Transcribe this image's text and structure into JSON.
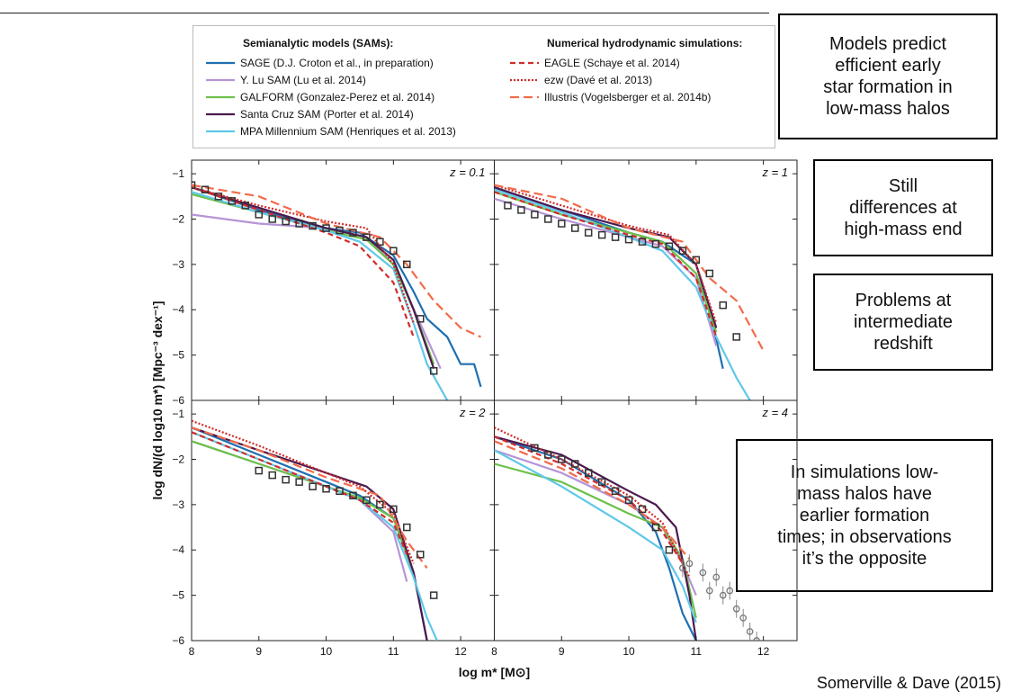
{
  "legend": {
    "sam_heading": "Semianalytic models (SAMs):",
    "sim_heading": "Numerical hydrodynamic simulations:",
    "sam_items": [
      {
        "label": "SAGE (D.J. Croton et al., in preparation)",
        "color": "#1f6fb0",
        "dash": ""
      },
      {
        "label": "Y. Lu SAM (Lu et al. 2014)",
        "color": "#b694d6",
        "dash": ""
      },
      {
        "label": "GALFORM (Gonzalez-Perez et al. 2014)",
        "color": "#6cc04a",
        "dash": ""
      },
      {
        "label": "Santa Cruz SAM (Porter et al. 2014)",
        "color": "#4b1a4e",
        "dash": ""
      },
      {
        "label": "MPA Millennium SAM (Henriques et al. 2013)",
        "color": "#5fc8e8",
        "dash": ""
      }
    ],
    "sim_items": [
      {
        "label": "EAGLE (Schaye et al. 2014)",
        "color": "#d22b2b",
        "dash": "6,4"
      },
      {
        "label": "ezw (Davé et al. 2013)",
        "color": "#d22b2b",
        "dash": "2,2"
      },
      {
        "label": "Illustris (Vogelsberger et al. 2014b)",
        "color": "#f26b4a",
        "dash": "10,5"
      }
    ]
  },
  "callouts": {
    "c1": [
      "Models predict",
      "efficient early",
      "star formation in",
      "low-mass halos"
    ],
    "c2": [
      "Still",
      "differences at",
      "high-mass end"
    ],
    "c3": [
      "Problems at",
      "intermediate",
      "redshift"
    ],
    "c4": [
      "In simulations low-",
      "mass halos have",
      "earlier formation",
      "times; in observations",
      "it’s the opposite"
    ]
  },
  "citation": "Somerville & Dave (2015)",
  "chart_data": {
    "type": "line",
    "xlabel": "log m* [M⊙]",
    "ylabel": "log dN/(d log10 m*) [Mpc⁻³ dex⁻¹]",
    "xlim": [
      8,
      12.5
    ],
    "ylim": [
      -6,
      -0.7
    ],
    "xticks": [
      "8",
      "9",
      "10",
      "11",
      "12"
    ],
    "yticks": [
      "−1",
      "−2",
      "−3",
      "−4",
      "−5",
      "−6"
    ],
    "panels": [
      {
        "label": "z = 0.1",
        "series": [
          {
            "name": "SAGE",
            "color": "#1f6fb0",
            "dash": "",
            "x": [
              8,
              9,
              10,
              10.5,
              11,
              11.3,
              11.5,
              11.8,
              12,
              12.2,
              12.3
            ],
            "y": [
              -1.3,
              -1.8,
              -2.2,
              -2.3,
              -2.8,
              -3.6,
              -4.2,
              -4.6,
              -5.2,
              -5.2,
              -5.7
            ]
          },
          {
            "name": "Y. Lu SAM",
            "color": "#b694d6",
            "dash": "",
            "x": [
              8,
              9,
              10,
              10.6,
              11,
              11.4,
              11.7
            ],
            "y": [
              -1.9,
              -2.1,
              -2.2,
              -2.4,
              -3.0,
              -4.3,
              -5.3
            ]
          },
          {
            "name": "GALFORM",
            "color": "#6cc04a",
            "dash": "",
            "x": [
              8,
              9,
              10,
              10.6,
              11,
              11.3,
              11.6
            ],
            "y": [
              -1.45,
              -1.85,
              -2.25,
              -2.45,
              -3.0,
              -4.0,
              -5.2
            ]
          },
          {
            "name": "Santa Cruz SAM",
            "color": "#4b1a4e",
            "dash": "",
            "x": [
              8,
              9,
              10,
              10.6,
              11,
              11.3,
              11.6
            ],
            "y": [
              -1.3,
              -1.75,
              -2.2,
              -2.4,
              -2.9,
              -4.0,
              -5.3
            ]
          },
          {
            "name": "MPA Millennium SAM",
            "color": "#5fc8e8",
            "dash": "",
            "x": [
              8,
              9,
              10,
              10.5,
              11,
              11.3,
              11.5,
              11.8
            ],
            "y": [
              -1.4,
              -1.85,
              -2.25,
              -2.5,
              -3.1,
              -4.3,
              -5.2,
              -6.0
            ]
          },
          {
            "name": "EAGLE",
            "color": "#d22b2b",
            "dash": "6,4",
            "x": [
              8,
              9,
              10,
              10.5,
              11,
              11.3
            ],
            "y": [
              -1.3,
              -1.8,
              -2.3,
              -2.6,
              -3.4,
              -4.6
            ]
          },
          {
            "name": "ezw",
            "color": "#d22b2b",
            "dash": "2,2",
            "x": [
              8,
              9,
              10,
              10.6,
              11,
              11.3
            ],
            "y": [
              -1.3,
              -1.7,
              -2.05,
              -2.2,
              -3.0,
              -4.3
            ]
          },
          {
            "name": "Illustris",
            "color": "#f26b4a",
            "dash": "10,5",
            "x": [
              8,
              9,
              10,
              10.8,
              11.2,
              11.6,
              12,
              12.3
            ],
            "y": [
              -1.25,
              -1.5,
              -2.1,
              -2.4,
              -3.0,
              -3.8,
              -4.4,
              -4.6
            ]
          }
        ],
        "obs": {
          "x": [
            8,
            8.2,
            8.4,
            8.6,
            8.8,
            9.0,
            9.2,
            9.4,
            9.6,
            9.8,
            10.0,
            10.2,
            10.4,
            10.6,
            10.8,
            11.0,
            11.2,
            11.4,
            11.6
          ],
          "y": [
            -1.25,
            -1.35,
            -1.5,
            -1.6,
            -1.7,
            -1.9,
            -2.0,
            -2.05,
            -2.1,
            -2.15,
            -2.2,
            -2.25,
            -2.3,
            -2.4,
            -2.5,
            -2.7,
            -3.0,
            -4.2,
            -5.35
          ]
        }
      },
      {
        "label": "z = 1",
        "series": [
          {
            "name": "SAGE",
            "color": "#1f6fb0",
            "dash": "",
            "x": [
              8,
              9,
              10,
              10.5,
              11,
              11.2,
              11.4
            ],
            "y": [
              -1.3,
              -1.8,
              -2.3,
              -2.5,
              -3.0,
              -4.0,
              -5.3
            ]
          },
          {
            "name": "Y. Lu SAM",
            "color": "#b694d6",
            "dash": "",
            "x": [
              8,
              9,
              10,
              10.5,
              11,
              11.3
            ],
            "y": [
              -1.55,
              -2.0,
              -2.4,
              -2.6,
              -3.3,
              -4.8
            ]
          },
          {
            "name": "GALFORM",
            "color": "#6cc04a",
            "dash": "",
            "x": [
              8,
              9,
              10,
              10.5,
              11,
              11.3
            ],
            "y": [
              -1.4,
              -1.9,
              -2.3,
              -2.5,
              -3.2,
              -4.5
            ]
          },
          {
            "name": "Santa Cruz SAM",
            "color": "#4b1a4e",
            "dash": "",
            "x": [
              8,
              9,
              10,
              10.6,
              11,
              11.3
            ],
            "y": [
              -1.3,
              -1.8,
              -2.2,
              -2.4,
              -3.0,
              -4.4
            ]
          },
          {
            "name": "MPA Millennium SAM",
            "color": "#5fc8e8",
            "dash": "",
            "x": [
              8,
              9,
              10,
              10.5,
              11,
              11.3,
              11.6,
              11.8
            ],
            "y": [
              -1.35,
              -1.85,
              -2.4,
              -2.7,
              -3.5,
              -4.6,
              -5.5,
              -6.0
            ]
          },
          {
            "name": "EAGLE",
            "color": "#d22b2b",
            "dash": "6,4",
            "x": [
              8,
              9,
              10,
              10.5,
              11,
              11.3
            ],
            "y": [
              -1.4,
              -1.9,
              -2.35,
              -2.55,
              -3.3,
              -4.6
            ]
          },
          {
            "name": "ezw",
            "color": "#d22b2b",
            "dash": "2,2",
            "x": [
              8,
              9,
              10,
              10.6,
              11,
              11.3
            ],
            "y": [
              -1.25,
              -1.7,
              -2.15,
              -2.35,
              -3.0,
              -4.3
            ]
          },
          {
            "name": "Illustris",
            "color": "#f26b4a",
            "dash": "10,5",
            "x": [
              8,
              9,
              10,
              10.8,
              11.2,
              11.6,
              12
            ],
            "y": [
              -1.25,
              -1.55,
              -2.2,
              -2.5,
              -3.3,
              -3.8,
              -4.9
            ]
          }
        ],
        "obs": {
          "x": [
            8.2,
            8.4,
            8.6,
            8.8,
            9.0,
            9.2,
            9.4,
            9.6,
            9.8,
            10.0,
            10.2,
            10.4,
            10.6,
            10.8,
            11.0,
            11.2,
            11.4,
            11.6
          ],
          "y": [
            -1.7,
            -1.8,
            -1.9,
            -2.0,
            -2.1,
            -2.2,
            -2.3,
            -2.35,
            -2.4,
            -2.45,
            -2.5,
            -2.55,
            -2.6,
            -2.7,
            -2.9,
            -3.2,
            -3.9,
            -4.6
          ]
        }
      },
      {
        "label": "z = 2",
        "series": [
          {
            "name": "SAGE",
            "color": "#1f6fb0",
            "dash": "",
            "x": [
              8,
              9,
              10,
              10.5,
              11,
              11.3,
              11.5
            ],
            "y": [
              -1.3,
              -1.9,
              -2.5,
              -2.8,
              -3.3,
              -4.5,
              -6.0
            ]
          },
          {
            "name": "Y. Lu SAM",
            "color": "#b694d6",
            "dash": "",
            "x": [
              8,
              9,
              10,
              10.5,
              11,
              11.2
            ],
            "y": [
              -1.6,
              -2.1,
              -2.6,
              -2.9,
              -3.6,
              -4.7
            ]
          },
          {
            "name": "GALFORM",
            "color": "#6cc04a",
            "dash": "",
            "x": [
              8,
              9,
              10,
              10.5,
              11,
              11.3
            ],
            "y": [
              -1.6,
              -2.1,
              -2.6,
              -2.85,
              -3.3,
              -4.5
            ]
          },
          {
            "name": "Santa Cruz SAM",
            "color": "#4b1a4e",
            "dash": "",
            "x": [
              8,
              9,
              10,
              10.6,
              11,
              11.3,
              11.5
            ],
            "y": [
              -1.3,
              -1.8,
              -2.3,
              -2.6,
              -3.1,
              -4.5,
              -6.0
            ]
          },
          {
            "name": "MPA Millennium SAM",
            "color": "#5fc8e8",
            "dash": "",
            "x": [
              8,
              9,
              10,
              10.5,
              11,
              11.3,
              11.5,
              11.65
            ],
            "y": [
              -1.4,
              -2.0,
              -2.6,
              -2.9,
              -3.5,
              -4.6,
              -5.5,
              -6.0
            ]
          },
          {
            "name": "EAGLE",
            "color": "#d22b2b",
            "dash": "6,4",
            "x": [
              8,
              9,
              10,
              10.5,
              11,
              11.2
            ],
            "y": [
              -1.4,
              -2.0,
              -2.6,
              -2.9,
              -3.4,
              -4.1
            ]
          },
          {
            "name": "ezw",
            "color": "#d22b2b",
            "dash": "2,2",
            "x": [
              8,
              9,
              10,
              10.5,
              11,
              11.3
            ],
            "y": [
              -1.15,
              -1.7,
              -2.3,
              -2.6,
              -3.2,
              -4.3
            ]
          },
          {
            "name": "Illustris",
            "color": "#f26b4a",
            "dash": "10,5",
            "x": [
              8,
              9,
              10,
              10.8,
              11.2,
              11.5
            ],
            "y": [
              -1.3,
              -1.8,
              -2.4,
              -2.8,
              -3.8,
              -4.4
            ]
          }
        ],
        "obs": {
          "x": [
            9.0,
            9.2,
            9.4,
            9.6,
            9.8,
            10.0,
            10.2,
            10.4,
            10.6,
            10.8,
            11.0,
            11.2,
            11.4,
            11.6
          ],
          "y": [
            -2.25,
            -2.35,
            -2.45,
            -2.5,
            -2.6,
            -2.65,
            -2.7,
            -2.8,
            -2.9,
            -3.0,
            -3.1,
            -3.5,
            -4.1,
            -5.0
          ]
        }
      },
      {
        "label": "z = 4",
        "series": [
          {
            "name": "SAGE",
            "color": "#1f6fb0",
            "dash": "",
            "x": [
              8,
              9,
              10,
              10.4,
              10.6,
              10.8,
              11.0
            ],
            "y": [
              -1.5,
              -2.0,
              -2.9,
              -3.6,
              -4.4,
              -5.4,
              -6.0
            ]
          },
          {
            "name": "Y. Lu SAM",
            "color": "#b694d6",
            "dash": "",
            "x": [
              8,
              9,
              10,
              10.5,
              10.8,
              11.0
            ],
            "y": [
              -1.8,
              -2.3,
              -3.0,
              -3.5,
              -4.3,
              -5.0
            ]
          },
          {
            "name": "GALFORM",
            "color": "#6cc04a",
            "dash": "",
            "x": [
              8,
              9,
              10,
              10.5,
              10.8,
              11.0
            ],
            "y": [
              -2.1,
              -2.5,
              -3.2,
              -3.5,
              -4.2,
              -5.5
            ]
          },
          {
            "name": "Santa Cruz SAM",
            "color": "#4b1a4e",
            "dash": "",
            "x": [
              8,
              9,
              10,
              10.4,
              10.7,
              10.9,
              11.0
            ],
            "y": [
              -1.5,
              -1.9,
              -2.7,
              -3.0,
              -3.5,
              -5.0,
              -6.0
            ]
          },
          {
            "name": "MPA Millennium SAM",
            "color": "#5fc8e8",
            "dash": "",
            "x": [
              8,
              9,
              10,
              10.5,
              10.8,
              11.0
            ],
            "y": [
              -1.8,
              -2.6,
              -3.5,
              -4.0,
              -4.8,
              -5.6
            ]
          },
          {
            "name": "EAGLE",
            "color": "#d22b2b",
            "dash": "6,4",
            "x": [
              8,
              9,
              10,
              10.5,
              10.8
            ],
            "y": [
              -1.5,
              -2.1,
              -2.9,
              -3.6,
              -4.3
            ]
          },
          {
            "name": "ezw",
            "color": "#d22b2b",
            "dash": "2,2",
            "x": [
              8,
              9,
              10,
              10.5,
              10.9
            ],
            "y": [
              -1.3,
              -2.0,
              -2.8,
              -3.4,
              -4.6
            ]
          },
          {
            "name": "Illustris",
            "color": "#f26b4a",
            "dash": "10,5",
            "x": [
              8,
              9,
              10,
              10.5,
              10.9
            ],
            "y": [
              -1.6,
              -2.2,
              -3.0,
              -3.5,
              -4.2
            ]
          }
        ],
        "obs": {
          "x": [
            8.6,
            8.8,
            9.0,
            9.2,
            9.4,
            9.6,
            9.8,
            10.0,
            10.2,
            10.4,
            10.6
          ],
          "y": [
            -1.75,
            -1.9,
            -2.0,
            -2.1,
            -2.3,
            -2.5,
            -2.7,
            -2.9,
            -3.1,
            -3.5,
            -4.0
          ]
        },
        "obs_grey": {
          "x": [
            10.8,
            10.9,
            11.1,
            11.2,
            11.3,
            11.4,
            11.5,
            11.6,
            11.7,
            11.8,
            11.9
          ],
          "y": [
            -4.4,
            -4.3,
            -4.5,
            -4.9,
            -4.6,
            -5.0,
            -4.9,
            -5.3,
            -5.5,
            -5.8,
            -6.0
          ]
        }
      }
    ]
  }
}
